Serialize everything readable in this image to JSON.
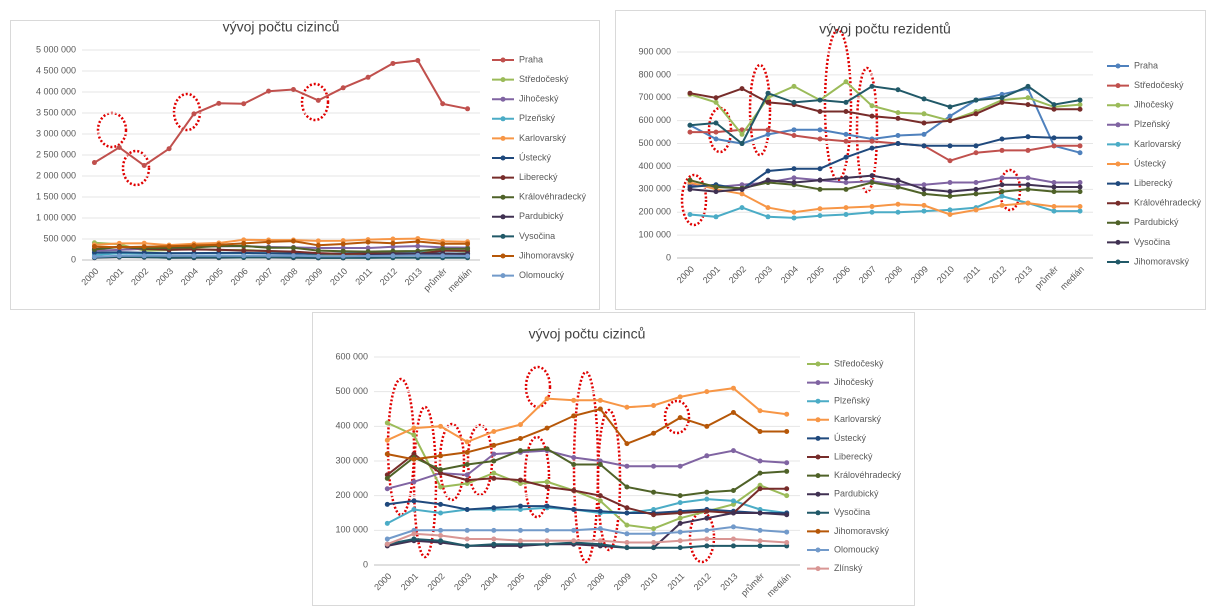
{
  "chart_data": [
    {
      "type": "line",
      "title": "vývoj počtu cizinců",
      "categories": [
        "2000",
        "2001",
        "2002",
        "2003",
        "2004",
        "2005",
        "2006",
        "2007",
        "2008",
        "2009",
        "2010",
        "2011",
        "2012",
        "2013",
        "průměr",
        "medián"
      ],
      "ylim": [
        0,
        5000000
      ],
      "yticks": [
        0,
        {
          "value": 500000,
          "label": "500 000"
        },
        {
          "value": 1000000,
          "label": "1 000 000"
        },
        {
          "value": 1500000,
          "label": "1 500 000"
        },
        {
          "value": 2000000,
          "label": "2 000 000"
        },
        {
          "value": 2500000,
          "label": "2 500 000"
        },
        {
          "value": 3000000,
          "label": "3 000 000"
        },
        {
          "value": 3500000,
          "label": "3 500 000"
        },
        {
          "value": 4000000,
          "label": "4 000 000"
        },
        {
          "value": 4500000,
          "label": "4 500 000"
        },
        {
          "value": 5000000,
          "label": "5 000 000"
        }
      ],
      "series": [
        {
          "name": "Praha",
          "color": "#c0504d",
          "values": [
            2320000,
            2680000,
            2250000,
            2650000,
            3480000,
            3730000,
            3720000,
            4020000,
            4060000,
            3800000,
            4100000,
            4350000,
            4680000,
            4750000,
            3720000,
            3600000
          ]
        },
        {
          "name": "Středočeský",
          "color": "#9bbb59",
          "values": [
            410000,
            375000,
            225000,
            235000,
            265000,
            235000,
            240000,
            215000,
            185000,
            115000,
            105000,
            135000,
            155000,
            175000,
            230000,
            200000
          ]
        },
        {
          "name": "Jihočeský",
          "color": "#8064a2",
          "values": [
            220000,
            240000,
            265000,
            260000,
            320000,
            325000,
            330000,
            310000,
            300000,
            285000,
            285000,
            285000,
            315000,
            330000,
            300000,
            295000
          ]
        },
        {
          "name": "Plzeňský",
          "color": "#4bacc6",
          "values": [
            120000,
            160000,
            150000,
            160000,
            160000,
            160000,
            165000,
            160000,
            150000,
            150000,
            160000,
            180000,
            190000,
            185000,
            160000,
            150000
          ]
        },
        {
          "name": "Karlovarský",
          "color": "#f79646",
          "values": [
            360000,
            395000,
            400000,
            355000,
            385000,
            405000,
            480000,
            475000,
            475000,
            455000,
            460000,
            485000,
            500000,
            510000,
            445000,
            435000
          ]
        },
        {
          "name": "Ústecký",
          "color": "#1f497d",
          "values": [
            175000,
            185000,
            175000,
            160000,
            165000,
            170000,
            170000,
            160000,
            155000,
            150000,
            150000,
            155000,
            160000,
            155000,
            150000,
            150000
          ]
        },
        {
          "name": "Liberecký",
          "color": "#772c2a",
          "values": [
            260000,
            320000,
            265000,
            245000,
            250000,
            245000,
            225000,
            215000,
            200000,
            165000,
            145000,
            150000,
            155000,
            150000,
            220000,
            220000
          ]
        },
        {
          "name": "Královéhradecký",
          "color": "#4f6228",
          "values": [
            250000,
            310000,
            275000,
            290000,
            300000,
            330000,
            335000,
            290000,
            290000,
            225000,
            210000,
            200000,
            210000,
            215000,
            265000,
            270000
          ]
        },
        {
          "name": "Pardubický",
          "color": "#403152",
          "values": [
            55000,
            70000,
            65000,
            55000,
            55000,
            55000,
            60000,
            60000,
            55000,
            50000,
            50000,
            120000,
            135000,
            150000,
            150000,
            145000
          ]
        },
        {
          "name": "Vysočina",
          "color": "#215968",
          "values": [
            60000,
            75000,
            70000,
            55000,
            60000,
            60000,
            60000,
            65000,
            60000,
            50000,
            50000,
            50000,
            55000,
            55000,
            55000,
            55000
          ]
        },
        {
          "name": "Jihomoravský",
          "color": "#b65708",
          "values": [
            320000,
            305000,
            315000,
            325000,
            345000,
            365000,
            395000,
            430000,
            450000,
            350000,
            380000,
            425000,
            400000,
            440000,
            385000,
            385000
          ]
        },
        {
          "name": "Olomoucký",
          "color": "#729aca",
          "values": [
            75000,
            100000,
            100000,
            100000,
            100000,
            100000,
            100000,
            100000,
            105000,
            90000,
            90000,
            95000,
            100000,
            110000,
            100000,
            95000
          ]
        }
      ]
    },
    {
      "type": "line",
      "title": "vývoj počtu rezidentů",
      "categories": [
        "2000",
        "2001",
        "2002",
        "2003",
        "2004",
        "2005",
        "2006",
        "2007",
        "2008",
        "2009",
        "2010",
        "2011",
        "2012",
        "2013",
        "průměr",
        "medián"
      ],
      "ylim": [
        0,
        900000
      ],
      "yticks": [
        0,
        {
          "value": 100000,
          "label": "100 000"
        },
        {
          "value": 200000,
          "label": "200 000"
        },
        {
          "value": 300000,
          "label": "300 000"
        },
        {
          "value": 400000,
          "label": "400 000"
        },
        {
          "value": 500000,
          "label": "500 000"
        },
        {
          "value": 600000,
          "label": "600 000"
        },
        {
          "value": 700000,
          "label": "700 000"
        },
        {
          "value": 800000,
          "label": "800 000"
        },
        {
          "value": 900000,
          "label": "900 000"
        }
      ],
      "series": [
        {
          "name": "Praha",
          "color": "#4f81bd",
          "values": [
            580000,
            520000,
            500000,
            540000,
            560000,
            560000,
            540000,
            520000,
            535000,
            540000,
            620000,
            690000,
            715000,
            740000,
            490000,
            460000
          ]
        },
        {
          "name": "Středočeský",
          "color": "#c0504d",
          "values": [
            550000,
            550000,
            560000,
            560000,
            535000,
            520000,
            510000,
            510000,
            500000,
            490000,
            425000,
            460000,
            470000,
            470000,
            490000,
            490000
          ]
        },
        {
          "name": "Jihočeský",
          "color": "#9bbb59",
          "values": [
            715000,
            680000,
            540000,
            700000,
            750000,
            690000,
            770000,
            665000,
            635000,
            630000,
            600000,
            640000,
            690000,
            700000,
            660000,
            670000
          ]
        },
        {
          "name": "Plzeňský",
          "color": "#8064a2",
          "values": [
            320000,
            310000,
            320000,
            330000,
            350000,
            340000,
            330000,
            335000,
            320000,
            320000,
            330000,
            330000,
            350000,
            350000,
            330000,
            330000
          ]
        },
        {
          "name": "Karlovarský",
          "color": "#4bacc6",
          "values": [
            190000,
            180000,
            220000,
            180000,
            175000,
            185000,
            190000,
            200000,
            200000,
            205000,
            210000,
            220000,
            270000,
            240000,
            205000,
            205000
          ]
        },
        {
          "name": "Ústecký",
          "color": "#f79646",
          "values": [
            330000,
            300000,
            280000,
            220000,
            200000,
            215000,
            220000,
            225000,
            235000,
            230000,
            190000,
            210000,
            230000,
            240000,
            225000,
            225000
          ]
        },
        {
          "name": "Liberecký",
          "color": "#1f497d",
          "values": [
            310000,
            320000,
            300000,
            380000,
            390000,
            390000,
            440000,
            480000,
            500000,
            490000,
            490000,
            490000,
            520000,
            530000,
            525000,
            525000
          ]
        },
        {
          "name": "Královéhradecký",
          "color": "#772c2a",
          "values": [
            720000,
            700000,
            740000,
            680000,
            670000,
            640000,
            640000,
            620000,
            610000,
            590000,
            600000,
            630000,
            680000,
            670000,
            650000,
            650000
          ]
        },
        {
          "name": "Pardubický",
          "color": "#4f6228",
          "values": [
            340000,
            310000,
            305000,
            330000,
            320000,
            300000,
            300000,
            330000,
            310000,
            280000,
            270000,
            280000,
            290000,
            300000,
            290000,
            290000
          ]
        },
        {
          "name": "Vysočina",
          "color": "#403152",
          "values": [
            300000,
            290000,
            300000,
            340000,
            330000,
            340000,
            350000,
            360000,
            340000,
            300000,
            290000,
            300000,
            320000,
            320000,
            310000,
            310000
          ]
        },
        {
          "name": "Jihomoravský",
          "color": "#215968",
          "values": [
            580000,
            590000,
            500000,
            720000,
            680000,
            690000,
            680000,
            750000,
            735000,
            695000,
            660000,
            690000,
            700000,
            750000,
            670000,
            690000
          ]
        }
      ]
    },
    {
      "type": "line",
      "title": "vývoj počtu cizinců",
      "categories": [
        "2000",
        "2001",
        "2002",
        "2003",
        "2004",
        "2005",
        "2006",
        "2007",
        "2008",
        "2009",
        "2010",
        "2011",
        "2012",
        "2013",
        "průměr",
        "medián"
      ],
      "ylim": [
        0,
        600000
      ],
      "yticks": [
        0,
        {
          "value": 100000,
          "label": "100 000"
        },
        {
          "value": 200000,
          "label": "200 000"
        },
        {
          "value": 300000,
          "label": "300 000"
        },
        {
          "value": 400000,
          "label": "400 000"
        },
        {
          "value": 500000,
          "label": "500 000"
        },
        {
          "value": 600000,
          "label": "600 000"
        }
      ],
      "series": [
        {
          "name": "Středočeský",
          "color": "#9bbb59",
          "values": [
            410000,
            375000,
            225000,
            235000,
            265000,
            235000,
            240000,
            215000,
            185000,
            115000,
            105000,
            135000,
            155000,
            175000,
            230000,
            200000
          ]
        },
        {
          "name": "Jihočeský",
          "color": "#8064a2",
          "values": [
            220000,
            240000,
            265000,
            260000,
            320000,
            325000,
            330000,
            310000,
            300000,
            285000,
            285000,
            285000,
            315000,
            330000,
            300000,
            295000
          ]
        },
        {
          "name": "Plzeňský",
          "color": "#4bacc6",
          "values": [
            120000,
            160000,
            150000,
            160000,
            160000,
            160000,
            165000,
            160000,
            150000,
            150000,
            160000,
            180000,
            190000,
            185000,
            160000,
            150000
          ]
        },
        {
          "name": "Karlovarský",
          "color": "#f79646",
          "values": [
            360000,
            395000,
            400000,
            355000,
            385000,
            405000,
            480000,
            475000,
            475000,
            455000,
            460000,
            485000,
            500000,
            510000,
            445000,
            435000
          ]
        },
        {
          "name": "Ústecký",
          "color": "#1f497d",
          "values": [
            175000,
            185000,
            175000,
            160000,
            165000,
            170000,
            170000,
            160000,
            155000,
            150000,
            150000,
            155000,
            160000,
            155000,
            150000,
            150000
          ]
        },
        {
          "name": "Liberecký",
          "color": "#772c2a",
          "values": [
            260000,
            320000,
            265000,
            245000,
            250000,
            245000,
            225000,
            215000,
            200000,
            165000,
            145000,
            150000,
            155000,
            150000,
            220000,
            220000
          ]
        },
        {
          "name": "Královéhradecký",
          "color": "#4f6228",
          "values": [
            250000,
            310000,
            275000,
            290000,
            300000,
            330000,
            335000,
            290000,
            290000,
            225000,
            210000,
            200000,
            210000,
            215000,
            265000,
            270000
          ]
        },
        {
          "name": "Pardubický",
          "color": "#403152",
          "values": [
            55000,
            70000,
            65000,
            55000,
            55000,
            55000,
            60000,
            60000,
            55000,
            50000,
            50000,
            120000,
            135000,
            150000,
            150000,
            145000
          ]
        },
        {
          "name": "Vysočina",
          "color": "#215968",
          "values": [
            60000,
            75000,
            70000,
            55000,
            60000,
            60000,
            60000,
            65000,
            60000,
            50000,
            50000,
            50000,
            55000,
            55000,
            55000,
            55000
          ]
        },
        {
          "name": "Jihomoravský",
          "color": "#b65708",
          "values": [
            320000,
            305000,
            315000,
            325000,
            345000,
            365000,
            395000,
            430000,
            450000,
            350000,
            380000,
            425000,
            400000,
            440000,
            385000,
            385000
          ]
        },
        {
          "name": "Olomoucký",
          "color": "#729aca",
          "values": [
            75000,
            100000,
            100000,
            100000,
            100000,
            100000,
            100000,
            100000,
            105000,
            90000,
            90000,
            95000,
            100000,
            110000,
            100000,
            95000
          ]
        },
        {
          "name": "Zlínský",
          "color": "#d99694",
          "values": [
            60000,
            90000,
            85000,
            75000,
            75000,
            70000,
            70000,
            70000,
            70000,
            65000,
            65000,
            70000,
            75000,
            75000,
            70000,
            65000
          ]
        }
      ]
    }
  ]
}
